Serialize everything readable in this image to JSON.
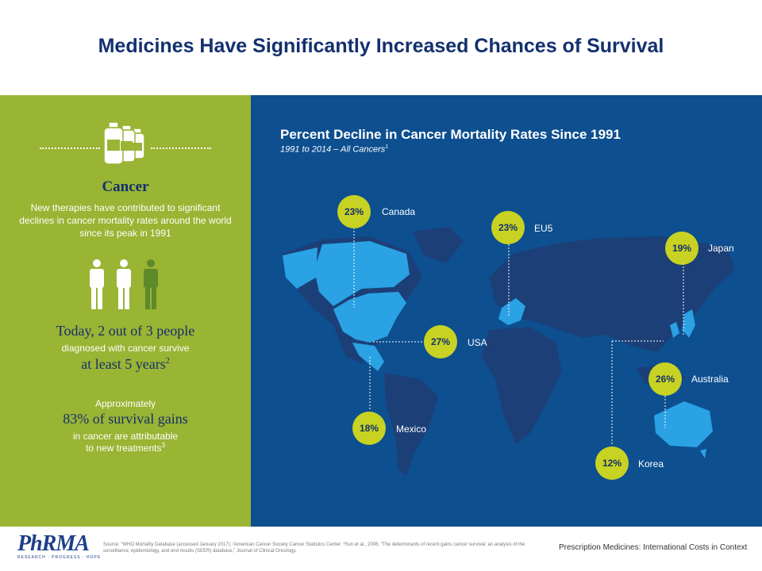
{
  "page": {
    "title": "Medicines Have Significantly Increased Chances of Survival"
  },
  "left_panel": {
    "icon": "medicine-bottles-icon",
    "people_icon": "people-icon",
    "heading": "Cancer",
    "description": "New therapies have contributed to significant declines in cancer mortality rates around the world since its peak in 1991",
    "stat1_line1": "Today, 2 out of 3 people",
    "stat1_line2": "diagnosed with cancer survive",
    "stat1_line3": "at least 5 years",
    "stat1_sup": "2",
    "stat2_line1": "Approximately",
    "stat2_line2": "83% of survival gains",
    "stat2_line3": "in cancer are attributable",
    "stat2_line4": "to new treatments",
    "stat2_sup": "3",
    "colors": {
      "panel": "#9ab433",
      "accent": "#13306e",
      "person_highlight": "#5e8a2c"
    }
  },
  "right_panel": {
    "title": "Percent Decline in Cancer Mortality Rates Since 1991",
    "subtitle": "1991 to 2014 – All Cancers",
    "subtitle_sup": "1",
    "colors": {
      "panel": "#0d4f8f",
      "land": "#1c3f78",
      "highlight": "#2aa2e4",
      "bubble": "#c8d222"
    }
  },
  "chart_data": {
    "type": "map",
    "title": "Percent Decline in Cancer Mortality Rates Since 1991",
    "subtitle": "1991 to 2014 – All Cancers",
    "unit": "%",
    "countries": [
      {
        "name": "Canada",
        "value": 23,
        "label": "23%"
      },
      {
        "name": "EU5",
        "value": 23,
        "label": "23%"
      },
      {
        "name": "Japan",
        "value": 19,
        "label": "19%"
      },
      {
        "name": "USA",
        "value": 27,
        "label": "27%"
      },
      {
        "name": "Australia",
        "value": 26,
        "label": "26%"
      },
      {
        "name": "Mexico",
        "value": 18,
        "label": "18%"
      },
      {
        "name": "Korea",
        "value": 12,
        "label": "12%"
      }
    ]
  },
  "footer": {
    "source": "Source: “WHO Mortality Database (accessed January 2017); ²American Cancer Society Cancer Statistics Center; ³Sun et al., 2008, “The determinants of recent gains cancer survival: an analysis of the surveillance, epidemiology, and end results (SEER) database,” Journal of Clinical Oncology.",
    "right_text": "Prescription Medicines: International Costs in Context",
    "logo_text": "PhRMA",
    "logo_tagline": "RESEARCH · PROGRESS · HOPE"
  }
}
